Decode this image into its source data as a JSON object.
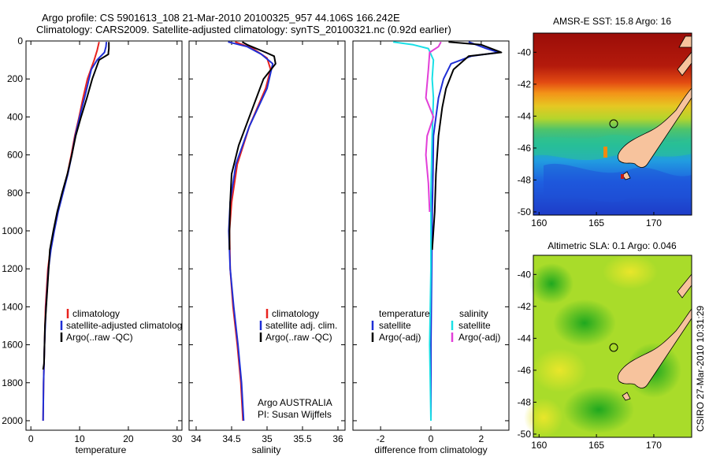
{
  "header": {
    "line1": "Argo profile: CS 5901613_108 21-Mar-2010 20100325_957 44.106S 166.242E",
    "line2": "Climatology: CARS2009. Satellite-adjusted climatology: synTS_20100321.nc (0.92d earlier)"
  },
  "colors": {
    "climatology": "#e8231e",
    "satellite": "#1f2fd6",
    "argo": "#000000",
    "salinity_satellite": "#19e0e6",
    "salinity_argo": "#e23fd8",
    "land": "#f7c39d"
  },
  "chart_data": [
    {
      "type": "line",
      "panel": "temperature",
      "xlabel": "temperature",
      "xlim": [
        -1,
        31
      ],
      "ylim": [
        2050,
        0
      ],
      "xticks": [
        0,
        10,
        20,
        30
      ],
      "yticks": [
        0,
        200,
        400,
        600,
        800,
        1000,
        1200,
        1400,
        1600,
        1800,
        2000
      ],
      "legend": [
        "climatology",
        "satellite-adjusted climatology",
        "Argo(..raw -QC)"
      ],
      "series": [
        {
          "name": "climatology",
          "color_key": "climatology",
          "x": [
            14.0,
            13.6,
            13.0,
            12.3,
            11.6,
            10.7,
            9.9,
            9.0,
            8.3,
            7.5,
            6.5,
            5.5,
            4.7,
            4.0,
            3.5,
            3.0,
            2.8,
            2.6,
            2.5
          ],
          "y": [
            5,
            50,
            100,
            150,
            200,
            300,
            400,
            500,
            600,
            700,
            800,
            900,
            1000,
            1100,
            1200,
            1400,
            1600,
            1800,
            2000
          ]
        },
        {
          "name": "satellite-adjusted climatology",
          "color_key": "satellite",
          "x": [
            15.5,
            15.4,
            15.1,
            13.6,
            12.4,
            11.0,
            10.0,
            9.1,
            8.4,
            7.6,
            6.6,
            5.6,
            4.8,
            4.1,
            3.6,
            3.1,
            2.8,
            2.6,
            2.5
          ],
          "y": [
            5,
            30,
            60,
            100,
            150,
            300,
            400,
            500,
            600,
            700,
            800,
            900,
            1000,
            1100,
            1200,
            1400,
            1600,
            1800,
            2000
          ]
        },
        {
          "name": "Argo(..raw -QC)",
          "color_key": "argo",
          "x": [
            16.0,
            16.0,
            15.9,
            15.9,
            14.0,
            12.6,
            11.5,
            10.3,
            9.2,
            8.4,
            7.5,
            6.4,
            5.4,
            4.6,
            3.9,
            3.4,
            2.9,
            2.7,
            2.5
          ],
          "y": [
            5,
            40,
            60,
            70,
            100,
            200,
            300,
            400,
            500,
            600,
            700,
            800,
            900,
            1000,
            1100,
            1300,
            1500,
            1700,
            1730
          ]
        }
      ]
    },
    {
      "type": "line",
      "panel": "salinity",
      "xlabel": "salinity",
      "xlim": [
        33.9,
        36.1
      ],
      "ylim": [
        2050,
        0
      ],
      "xticks": [
        34,
        34.5,
        35,
        35.5,
        36
      ],
      "legend": [
        "climatology",
        "satellite adj. clim.",
        "Argo(..raw -QC)"
      ],
      "annotation": [
        "Argo AUSTRALIA",
        "PI: Susan Wijffels"
      ],
      "series": [
        {
          "name": "climatology",
          "color_key": "climatology",
          "x": [
            34.55,
            34.8,
            35.0,
            35.05,
            34.98,
            34.75,
            34.58,
            34.5,
            34.47,
            34.48,
            34.52,
            34.58,
            34.63,
            34.66
          ],
          "y": [
            5,
            40,
            90,
            150,
            250,
            450,
            650,
            850,
            1000,
            1200,
            1400,
            1600,
            1800,
            2000
          ]
        },
        {
          "name": "satellite adj. clim.",
          "color_key": "satellite",
          "x": [
            34.45,
            34.72,
            34.92,
            35.08,
            35.0,
            34.75,
            34.56,
            34.48,
            34.46,
            34.48,
            34.53,
            34.59,
            34.64,
            34.67
          ],
          "y": [
            5,
            30,
            70,
            120,
            250,
            450,
            650,
            850,
            1000,
            1200,
            1400,
            1600,
            1800,
            2000
          ]
        },
        {
          "name": "Argo(..raw -QC)",
          "color_key": "argo",
          "x": [
            34.65,
            34.72,
            34.98,
            35.1,
            35.12,
            34.95,
            34.8,
            34.6,
            34.5,
            34.48,
            34.47,
            34.47
          ],
          "y": [
            5,
            20,
            60,
            80,
            120,
            200,
            350,
            550,
            700,
            850,
            1000,
            1100
          ]
        }
      ]
    },
    {
      "type": "line",
      "panel": "difference",
      "xlabel": "difference from climatology",
      "xlim": [
        -3.1,
        3.1
      ],
      "ylim": [
        2050,
        0
      ],
      "xticks": [
        -2,
        0,
        2
      ],
      "legend_groups": {
        "temperature": [
          "satellite",
          "Argo(-adj)"
        ],
        "salinity": [
          "satellite",
          "Argo(-adj)"
        ]
      },
      "series": [
        {
          "name": "temperature satellite",
          "color_key": "satellite",
          "x": [
            1.5,
            2.2,
            2.7,
            1.6,
            0.8,
            0.5,
            0.3,
            0.1,
            0.08,
            0.05,
            0.03,
            0.0,
            0.0
          ],
          "y": [
            5,
            40,
            60,
            80,
            120,
            200,
            300,
            500,
            700,
            900,
            1200,
            1600,
            2000
          ]
        },
        {
          "name": "temperature Argo(-adj)",
          "color_key": "argo",
          "x": [
            0.7,
            2.0,
            2.8,
            1.5,
            0.9,
            0.6,
            0.45,
            0.3,
            0.2,
            0.15,
            0.1,
            0.05
          ],
          "y": [
            5,
            20,
            60,
            80,
            150,
            250,
            350,
            500,
            700,
            900,
            1000,
            1100
          ]
        },
        {
          "name": "salinity satellite",
          "color_key": "salinity_satellite",
          "x": [
            -1.5,
            -0.7,
            -0.1,
            0.1,
            0.05,
            0.1,
            0.05,
            0.0,
            0.0,
            -0.05,
            0.0
          ],
          "y": [
            5,
            20,
            40,
            100,
            200,
            300,
            500,
            800,
            1200,
            1600,
            2000
          ]
        },
        {
          "name": "salinity Argo(-adj)",
          "color_key": "salinity_argo",
          "x": [
            0.4,
            0.3,
            -0.05,
            -0.1,
            -0.2,
            0.1,
            -0.15,
            -0.2,
            -0.1,
            -0.05
          ],
          "y": [
            5,
            30,
            60,
            150,
            300,
            400,
            500,
            600,
            750,
            900
          ]
        }
      ]
    }
  ],
  "maps": {
    "sst": {
      "title": "AMSR-E SST: 15.8 Argo: 16",
      "xticks": [
        "160",
        "165",
        "170"
      ],
      "yticks": [
        "-40",
        "-42",
        "-44",
        "-46",
        "-48",
        "-50"
      ]
    },
    "sla": {
      "title": "Altimetric SLA: 0.1 Argo: 0.046",
      "xticks": [
        "160",
        "165",
        "170"
      ],
      "yticks": [
        "-40",
        "-42",
        "-44",
        "-46",
        "-48",
        "-50"
      ]
    },
    "watermark": "CSIRO 27-Mar-2010 10:31:29"
  }
}
